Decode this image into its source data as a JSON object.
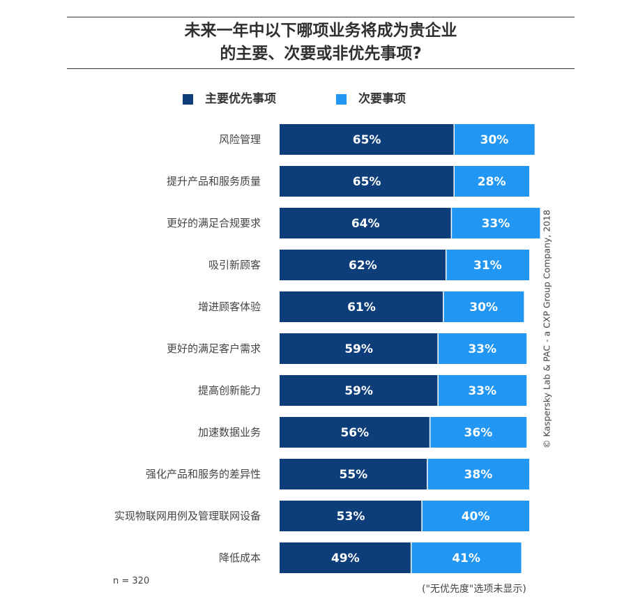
{
  "header": {
    "title_line1": "未来一年中以下哪项业务将成为贵企业",
    "title_line2": "的主要、次要或非优先事项?"
  },
  "legend": {
    "primary": "主要优先事项",
    "secondary": "次要事项"
  },
  "colors": {
    "primary": "#0d3e7a",
    "secondary": "#2196f3",
    "text": "#333333"
  },
  "chart_data": {
    "type": "bar",
    "orientation": "horizontal",
    "stacked": true,
    "title": "未来一年中以下哪项业务将成为贵企业的主要、次要或非优先事项?",
    "categories": [
      "风险管理",
      "提升产品和服务质量",
      "更好的满足合规要求",
      "吸引新顾客",
      "增进顾客体验",
      "更好的满足客户需求",
      "提高创新能力",
      "加速数据业务",
      "强化产品和服务的差异性",
      "实现物联网用例及管理联网设备",
      "降低成本"
    ],
    "series": [
      {
        "name": "主要优先事项",
        "values": [
          65,
          65,
          64,
          62,
          61,
          59,
          59,
          56,
          55,
          53,
          49
        ]
      },
      {
        "name": "次要事项",
        "values": [
          30,
          28,
          33,
          31,
          30,
          33,
          33,
          36,
          38,
          40,
          41
        ]
      }
    ],
    "value_suffix": "%",
    "xlim": [
      0,
      100
    ],
    "legend_position": "top"
  },
  "notes": {
    "sample_size": "n = 320",
    "footnote": "(\"无优先度\"选项未显示)",
    "credit": "© Kaspersky Lab & PAC - a CXP Group Company, 2018"
  }
}
